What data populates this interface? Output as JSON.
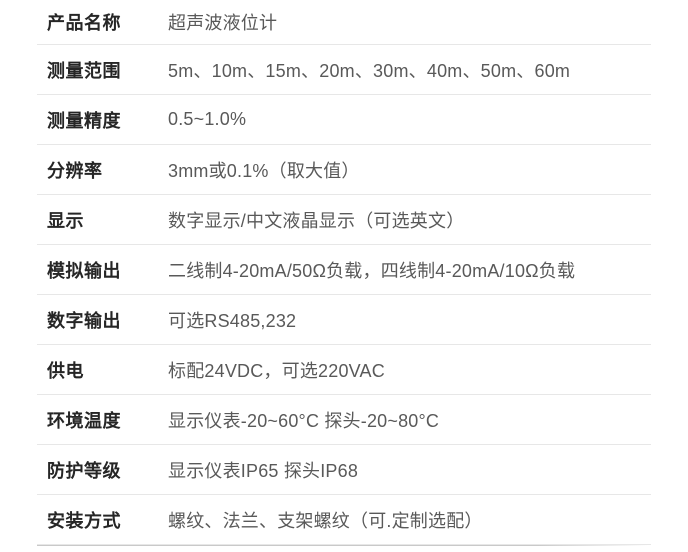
{
  "table": {
    "rows": [
      {
        "label": "产品名称",
        "value": "超声波液位计"
      },
      {
        "label": "测量范围",
        "value": "5m、10m、15m、20m、30m、40m、50m、60m"
      },
      {
        "label": "测量精度",
        "value": "0.5~1.0%"
      },
      {
        "label": "分辨率",
        "value": "3mm或0.1%（取大值）"
      },
      {
        "label": "显示",
        "value": "数字显示/中文液晶显示（可选英文）"
      },
      {
        "label": "模拟输出",
        "value": "二线制4-20mA/50Ω负载，四线制4-20mA/10Ω负载"
      },
      {
        "label": "数字输出",
        "value": "可选RS485,232"
      },
      {
        "label": "供电",
        "value": "标配24VDC，可选220VAC"
      },
      {
        "label": "环境温度",
        "value": "显示仪表-20~60°C 探头-20~80°C"
      },
      {
        "label": "防护等级",
        "value": "显示仪表IP65 探头IP68"
      },
      {
        "label": "安装方式",
        "value": "螺纹、法兰、支架螺纹（可.定制选配）"
      }
    ],
    "colors": {
      "label": "#262626",
      "value": "#595959",
      "divider": "#e7e7e7",
      "bottom_line": "#c9c9c9",
      "background": "#ffffff"
    }
  }
}
